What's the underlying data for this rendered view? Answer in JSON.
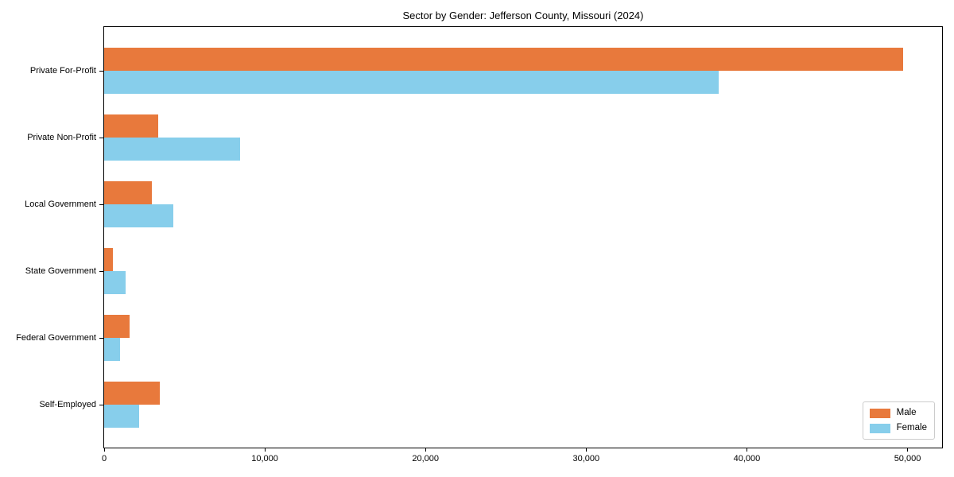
{
  "chart_data": {
    "type": "bar",
    "orientation": "horizontal",
    "title": "Sector by Gender: Jefferson County, Missouri (2024)",
    "xlabel": "",
    "ylabel": "",
    "categories": [
      "Private For-Profit",
      "Private Non-Profit",
      "Local Government",
      "State Government",
      "Federal Government",
      "Self-Employed"
    ],
    "series": [
      {
        "name": "Male",
        "color": "#e8793c",
        "values": [
          49750,
          3350,
          2950,
          550,
          1600,
          3450
        ]
      },
      {
        "name": "Female",
        "color": "#87ceeb",
        "values": [
          38250,
          8450,
          4300,
          1340,
          975,
          2200
        ]
      }
    ],
    "xlim": [
      0,
      52250
    ],
    "x_ticks": [
      0,
      10000,
      20000,
      30000,
      40000,
      50000
    ],
    "x_tick_labels": [
      "0",
      "10,000",
      "20,000",
      "30,000",
      "40,000",
      "50,000"
    ],
    "grid": false,
    "legend": {
      "position": "lower right",
      "entries": [
        "Male",
        "Female"
      ]
    }
  }
}
